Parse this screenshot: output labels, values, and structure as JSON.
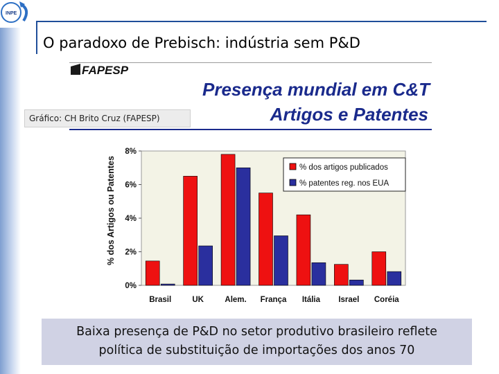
{
  "slide": {
    "title": "O paradoxo de Prebisch: indústria sem P&D",
    "logo_text": "INPE",
    "logo_icon": "inpe-logo-icon"
  },
  "header": {
    "brand": "FAPESP",
    "chart_title_line1": "Presença mundial em C&T",
    "chart_title_line2": "Artigos e Patentes",
    "source": "Gráfico: CH Brito Cruz (FAPESP)"
  },
  "caption": {
    "line1": "Baixa presença de P&D no setor produtivo brasileiro reflete",
    "line2": "política de substituição de importações dos anos 70"
  },
  "colors": {
    "articles": "#ee1111",
    "patents": "#2a2f9e",
    "plot_bg": "#f3f3e6",
    "title": "#1a2a8c"
  },
  "chart_data": {
    "type": "bar",
    "title": "Presença mundial em C&T Artigos e Patentes",
    "ylabel": "% dos Artigos ou Patentes",
    "xlabel": "",
    "ylim": [
      0,
      8
    ],
    "yticks": [
      "0%",
      "2%",
      "4%",
      "6%",
      "8%"
    ],
    "ytick_values": [
      0,
      2,
      4,
      6,
      8
    ],
    "categories": [
      "Brasil",
      "UK",
      "Alem.",
      "França",
      "Itália",
      "Israel",
      "Coréia"
    ],
    "series": [
      {
        "name": "% dos artigos publicados",
        "values": [
          1.45,
          6.5,
          7.8,
          5.5,
          4.2,
          1.25,
          2.0
        ]
      },
      {
        "name": "% patentes reg. nos EUA",
        "values": [
          0.08,
          2.35,
          7.0,
          2.95,
          1.35,
          0.32,
          0.82
        ]
      }
    ],
    "legend_position": "top-right",
    "grid": false
  }
}
